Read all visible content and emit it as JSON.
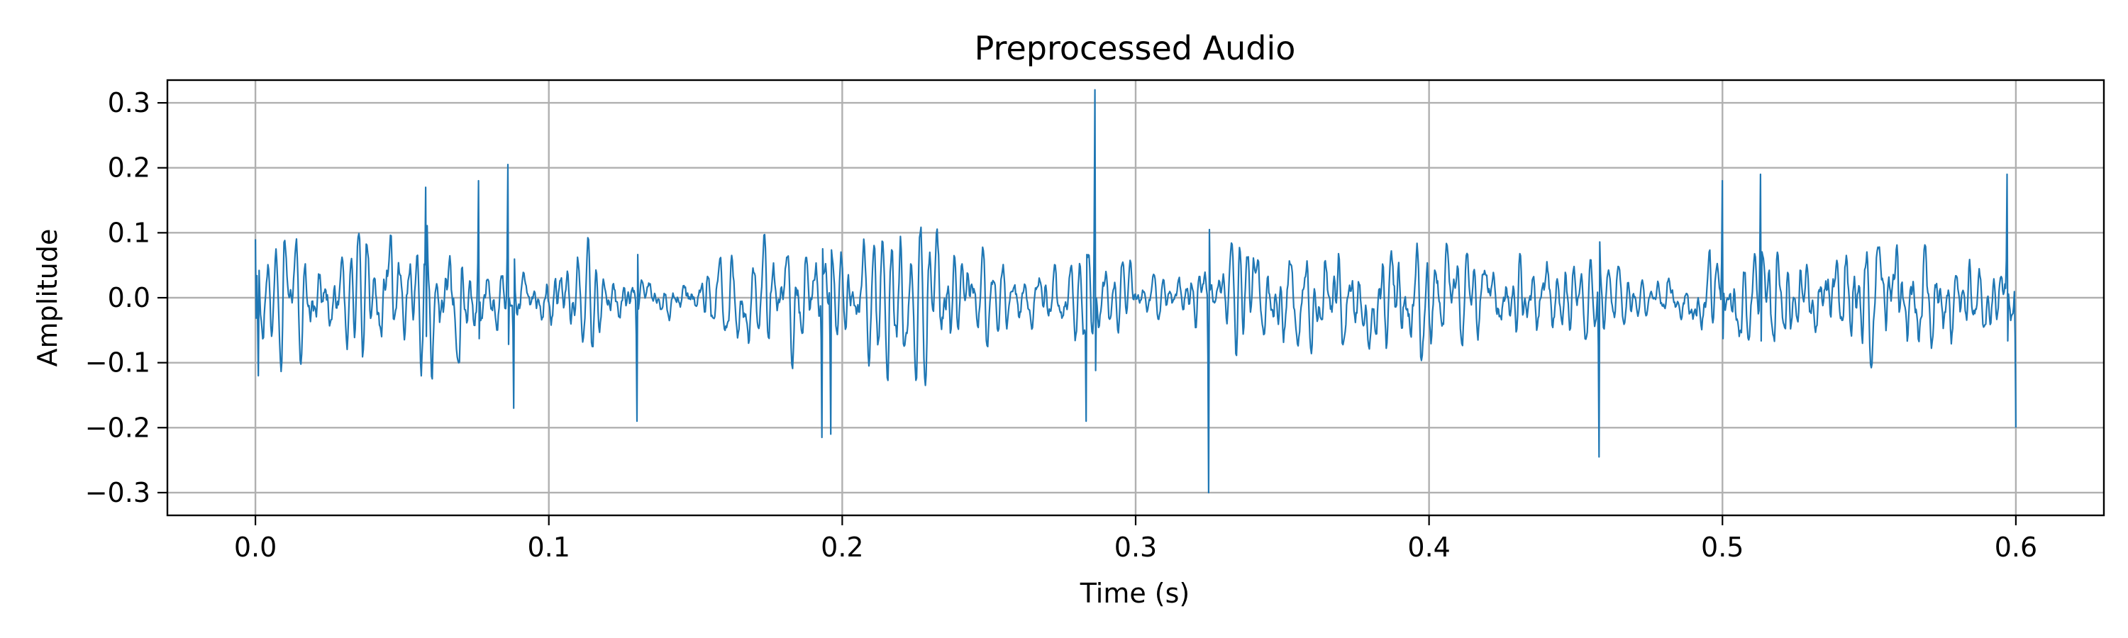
{
  "chart_data": {
    "type": "line",
    "title": "Preprocessed Audio",
    "xlabel": "Time (s)",
    "ylabel": "Amplitude",
    "xlim": [
      -0.03,
      0.63
    ],
    "ylim": [
      -0.335,
      0.335
    ],
    "xticks": [
      0.0,
      0.1,
      0.2,
      0.3,
      0.4,
      0.5,
      0.6
    ],
    "xtick_labels": [
      "0.0",
      "0.1",
      "0.2",
      "0.3",
      "0.4",
      "0.5",
      "0.6"
    ],
    "yticks": [
      -0.3,
      -0.2,
      -0.1,
      0.0,
      0.1,
      0.2,
      0.3
    ],
    "ytick_labels": [
      "−0.3",
      "−0.2",
      "−0.1",
      "0.0",
      "0.1",
      "0.2",
      "0.3"
    ],
    "grid": true,
    "line_color": "#1f77b4",
    "grid_color": "#b0b0b0",
    "series": [
      {
        "name": "audio",
        "x_start": 0.0,
        "x_end": 0.6,
        "typical_amplitude": 0.1,
        "peaks": [
          {
            "x": 0.0,
            "y": 0.09
          },
          {
            "x": 0.001,
            "y": -0.12
          },
          {
            "x": 0.058,
            "y": 0.17
          },
          {
            "x": 0.076,
            "y": 0.18
          },
          {
            "x": 0.086,
            "y": 0.205
          },
          {
            "x": 0.088,
            "y": -0.17
          },
          {
            "x": 0.13,
            "y": -0.19
          },
          {
            "x": 0.193,
            "y": -0.215
          },
          {
            "x": 0.196,
            "y": -0.21
          },
          {
            "x": 0.286,
            "y": 0.32
          },
          {
            "x": 0.283,
            "y": -0.19
          },
          {
            "x": 0.325,
            "y": -0.3
          },
          {
            "x": 0.458,
            "y": -0.245
          },
          {
            "x": 0.5,
            "y": 0.18
          },
          {
            "x": 0.513,
            "y": 0.19
          },
          {
            "x": 0.597,
            "y": 0.19
          },
          {
            "x": 0.6,
            "y": -0.2
          }
        ]
      }
    ]
  }
}
